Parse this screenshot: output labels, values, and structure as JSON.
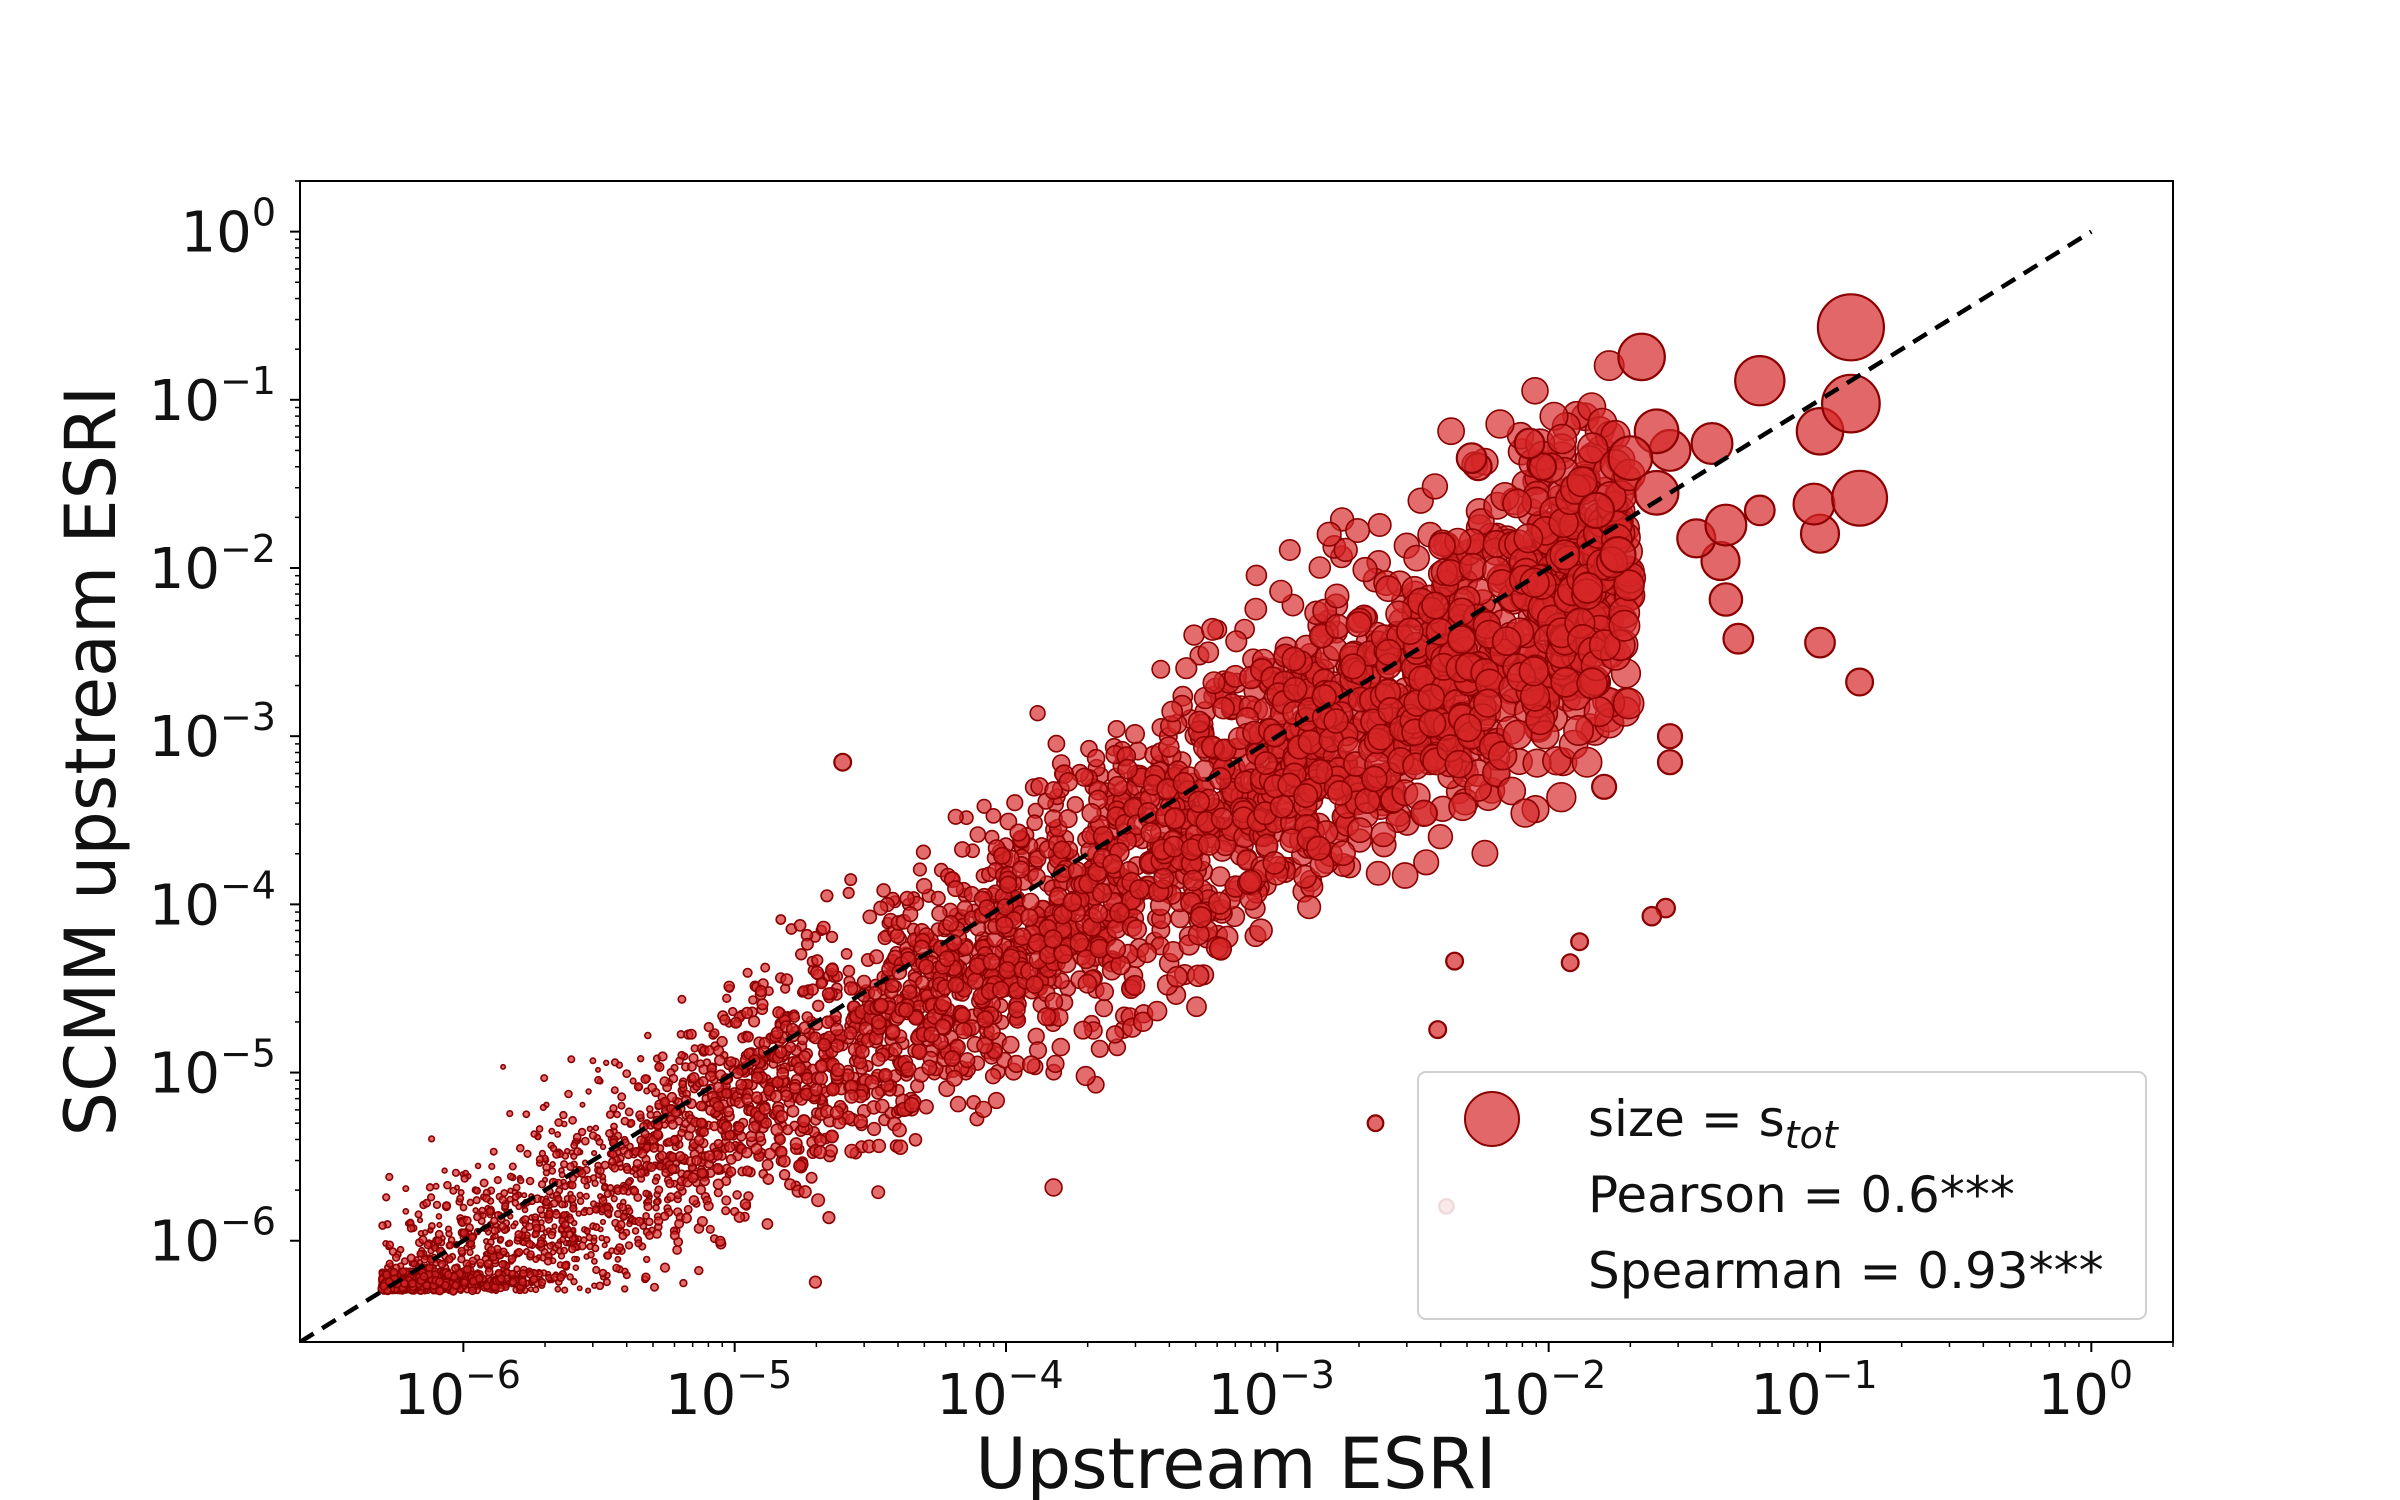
{
  "chart_data": {
    "type": "scatter",
    "title": "",
    "xlabel": "Upstream ESRI",
    "ylabel": "SCMM upstream ESRI",
    "x_scale": "log",
    "y_scale": "log",
    "xlim": [
      2.5e-07,
      2.0
    ],
    "ylim": [
      2.5e-07,
      2.0
    ],
    "grid": false,
    "x_ticks": [
      {
        "base": "10",
        "exp": "−6"
      },
      {
        "base": "10",
        "exp": "−5"
      },
      {
        "base": "10",
        "exp": "−4"
      },
      {
        "base": "10",
        "exp": "−3"
      },
      {
        "base": "10",
        "exp": "−2"
      },
      {
        "base": "10",
        "exp": "−1"
      },
      {
        "base": "10",
        "exp": "0"
      }
    ],
    "y_ticks": [
      {
        "base": "10",
        "exp": "−6"
      },
      {
        "base": "10",
        "exp": "−5"
      },
      {
        "base": "10",
        "exp": "−4"
      },
      {
        "base": "10",
        "exp": "−3"
      },
      {
        "base": "10",
        "exp": "−2"
      },
      {
        "base": "10",
        "exp": "−1"
      },
      {
        "base": "10",
        "exp": "0"
      }
    ],
    "reference_line": {
      "style": "dashed",
      "color": "#000000",
      "relation": "y = x"
    },
    "marker_color": "#d62728",
    "marker_edge_color": "#8b0000",
    "legend": {
      "placement": "lower-right",
      "entries": [
        "size = s_tot"
      ],
      "size_label_prefix": "size = s",
      "size_label_sub": "tot",
      "pearson": "Pearson = 0.6***",
      "spearman": "Spearman = 0.93***"
    },
    "points": [
      {
        "x": 0.13,
        "y": 0.27,
        "s": 1.0
      },
      {
        "x": 0.13,
        "y": 0.095,
        "s": 0.85
      },
      {
        "x": 0.14,
        "y": 0.026,
        "s": 0.8
      },
      {
        "x": 0.06,
        "y": 0.13,
        "s": 0.7
      },
      {
        "x": 0.022,
        "y": 0.18,
        "s": 0.65
      },
      {
        "x": 0.1,
        "y": 0.065,
        "s": 0.65
      },
      {
        "x": 0.025,
        "y": 0.065,
        "s": 0.6
      },
      {
        "x": 0.02,
        "y": 0.045,
        "s": 0.6
      },
      {
        "x": 0.028,
        "y": 0.05,
        "s": 0.55
      },
      {
        "x": 0.04,
        "y": 0.055,
        "s": 0.55
      },
      {
        "x": 0.025,
        "y": 0.028,
        "s": 0.6
      },
      {
        "x": 0.045,
        "y": 0.018,
        "s": 0.55
      },
      {
        "x": 0.095,
        "y": 0.024,
        "s": 0.55
      },
      {
        "x": 0.1,
        "y": 0.016,
        "s": 0.5
      },
      {
        "x": 0.043,
        "y": 0.011,
        "s": 0.5
      },
      {
        "x": 0.045,
        "y": 0.0065,
        "s": 0.4
      },
      {
        "x": 0.035,
        "y": 0.015,
        "s": 0.5
      },
      {
        "x": 0.018,
        "y": 0.012,
        "s": 0.45
      },
      {
        "x": 0.015,
        "y": 0.022,
        "s": 0.45
      },
      {
        "x": 0.06,
        "y": 0.022,
        "s": 0.35
      },
      {
        "x": 0.05,
        "y": 0.0038,
        "s": 0.35
      },
      {
        "x": 0.1,
        "y": 0.0036,
        "s": 0.35
      },
      {
        "x": 0.14,
        "y": 0.0021,
        "s": 0.3
      },
      {
        "x": 0.0085,
        "y": 0.055,
        "s": 0.35
      },
      {
        "x": 0.0052,
        "y": 0.045,
        "s": 0.35
      },
      {
        "x": 0.0055,
        "y": 0.04,
        "s": 0.3
      },
      {
        "x": 0.0095,
        "y": 0.04,
        "s": 0.3
      },
      {
        "x": 0.028,
        "y": 0.001,
        "s": 0.25
      },
      {
        "x": 0.028,
        "y": 0.0007,
        "s": 0.25
      },
      {
        "x": 0.016,
        "y": 0.0005,
        "s": 0.25
      },
      {
        "x": 0.027,
        "y": 9.5e-05,
        "s": 0.15
      },
      {
        "x": 0.024,
        "y": 8.5e-05,
        "s": 0.15
      },
      {
        "x": 0.013,
        "y": 6e-05,
        "s": 0.12
      },
      {
        "x": 0.012,
        "y": 4.5e-05,
        "s": 0.12
      },
      {
        "x": 2.5e-05,
        "y": 0.0007,
        "s": 0.12
      },
      {
        "x": 0.0045,
        "y": 4.6e-05,
        "s": 0.12
      },
      {
        "x": 0.0039,
        "y": 1.8e-05,
        "s": 0.12
      },
      {
        "x": 0.0023,
        "y": 5e-06,
        "s": 0.1
      },
      {
        "x": 0.0042,
        "y": 1.6e-06,
        "s": 0.08
      }
    ],
    "cloud": {
      "count": 4200,
      "x_range": [
        5e-07,
        0.02
      ],
      "slope": 1.0,
      "offset_log10": -0.22,
      "scatter_log10": 0.5,
      "y_floor": 5e-07
    }
  }
}
